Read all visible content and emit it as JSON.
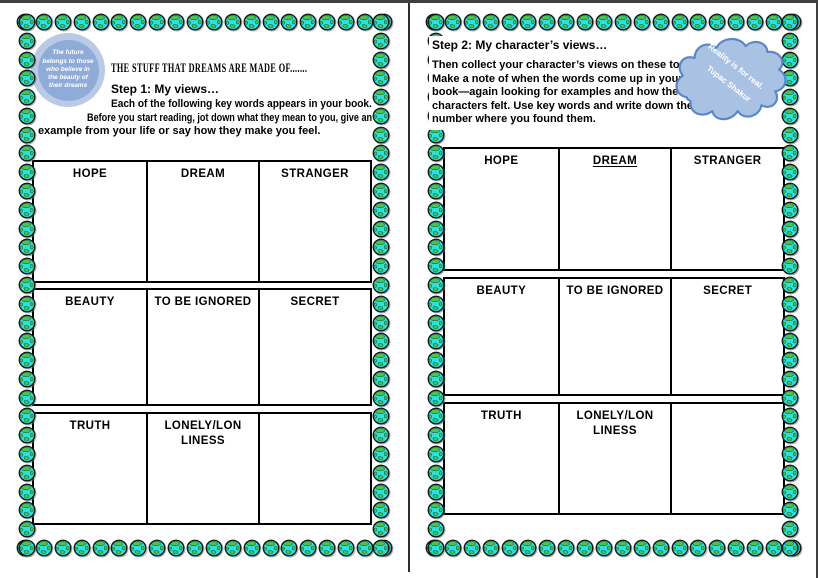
{
  "page1": {
    "quote_circle_lines": [
      "The future",
      "belongs to those",
      "who believe in",
      "the beauty of",
      "their dreams"
    ],
    "title": "THE STUFF THAT DREAMS ARE MADE OF.......",
    "step_heading": "Step 1: My views…",
    "intro_lines": [
      "Each of the following key words appears in your book.",
      "Before you start reading, jot down what they mean to you, give an",
      "example from your life or say how they make you feel."
    ],
    "key_word_rows": [
      [
        "HOPE",
        "DREAM",
        "STRANGER"
      ],
      [
        "BEAUTY",
        "TO BE IGNORED",
        "SECRET"
      ],
      [
        "TRUTH",
        "LONELY/LONLINESS",
        ""
      ]
    ]
  },
  "page2": {
    "step_heading": "Step 2: My character’s views…",
    "intro_lines": [
      "Then collect your character’s views on these topics.",
      "Make a note of when the words come up in your",
      "book—again looking for examples and how the",
      "characters felt.  Use key words and write down the page",
      "number where you found them."
    ],
    "cloud_quote_lines": [
      "Reality is for real.",
      "Tupac Shakur"
    ],
    "key_word_rows": [
      [
        "HOPE",
        "DREAM",
        "STRANGER"
      ],
      [
        "BEAUTY",
        "TO BE IGNORED",
        "SECRET"
      ],
      [
        "TRUTH",
        "LONELY/LONLINESS",
        ""
      ]
    ]
  },
  "colors": {
    "globe_ocean": "#29e1df",
    "globe_land": "#4dc151",
    "quote_circle_outer": "#bac9e6",
    "quote_circle_inner": "#8fabd8",
    "cloud_fill": "#a9c2e4",
    "cloud_stroke": "#5b88c4",
    "text": "#000000"
  }
}
